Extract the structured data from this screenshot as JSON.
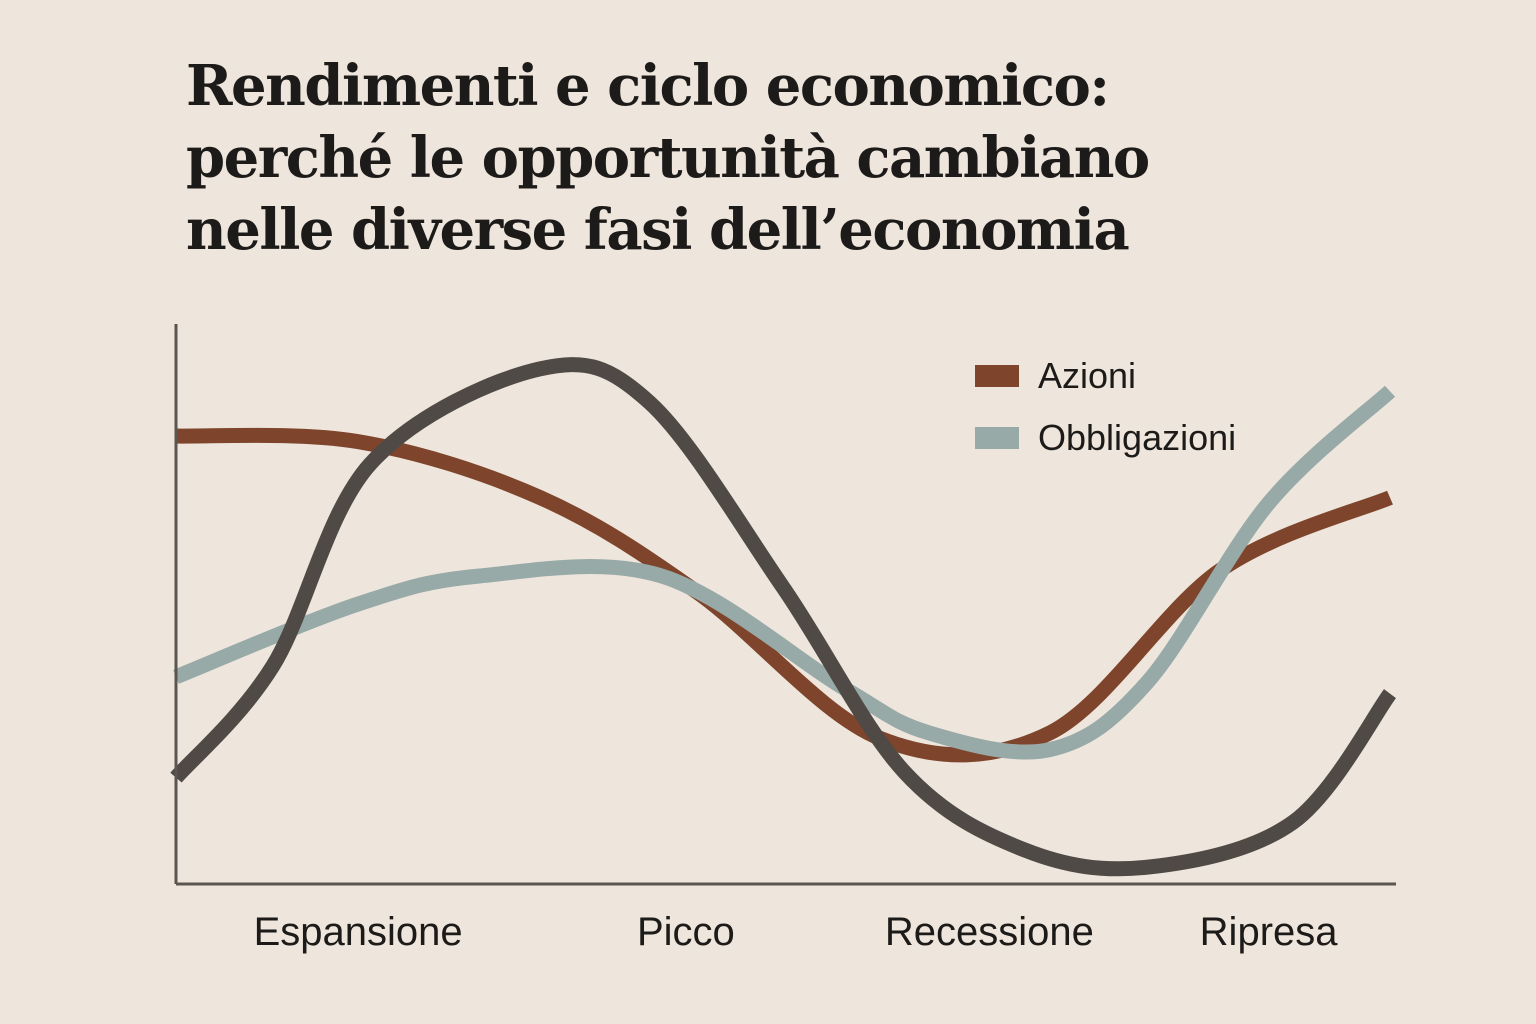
{
  "title_lines": [
    "Rendimenti e ciclo economico:",
    "perché le opportunità cambiano",
    "nelle diverse fasi dell’economia"
  ],
  "chart_data": {
    "type": "line",
    "title": "Rendimenti e ciclo economico: perché le opportunità cambiano nelle diverse fasi dell’economia",
    "xlabel": "",
    "ylabel": "",
    "categories": [
      "Espansione",
      "Picco",
      "Recessione",
      "Ripresa"
    ],
    "x_range": [
      0,
      10
    ],
    "category_positions": [
      1.5,
      4.2,
      6.7,
      9.0
    ],
    "ylim": [
      0,
      10
    ],
    "grid": false,
    "legend": "top-right",
    "series": [
      {
        "name": "Azioni",
        "color": "#7e452c",
        "in_legend": true,
        "x": [
          0,
          1.5,
          3,
          4.3,
          5.8,
          7.2,
          8.6,
          10
        ],
        "y": [
          8.0,
          7.9,
          6.9,
          5.2,
          2.6,
          2.7,
          5.6,
          6.9
        ]
      },
      {
        "name": "Obbligazioni",
        "color": "#98aaa8",
        "in_legend": true,
        "x": [
          0,
          1.5,
          2.5,
          4.0,
          5.5,
          6.2,
          7.2,
          8.0,
          9.0,
          10
        ],
        "y": [
          3.7,
          5.0,
          5.5,
          5.5,
          3.5,
          2.7,
          2.4,
          3.6,
          6.8,
          8.8
        ]
      },
      {
        "name": "",
        "color": "#4f4a45",
        "in_legend": false,
        "x": [
          0,
          0.8,
          1.6,
          3.0,
          3.9,
          5.0,
          6.0,
          7.0,
          8.0,
          9.2,
          10
        ],
        "y": [
          1.9,
          3.9,
          7.5,
          9.2,
          8.6,
          5.3,
          2.0,
          0.6,
          0.3,
          1.1,
          3.4
        ]
      }
    ]
  }
}
